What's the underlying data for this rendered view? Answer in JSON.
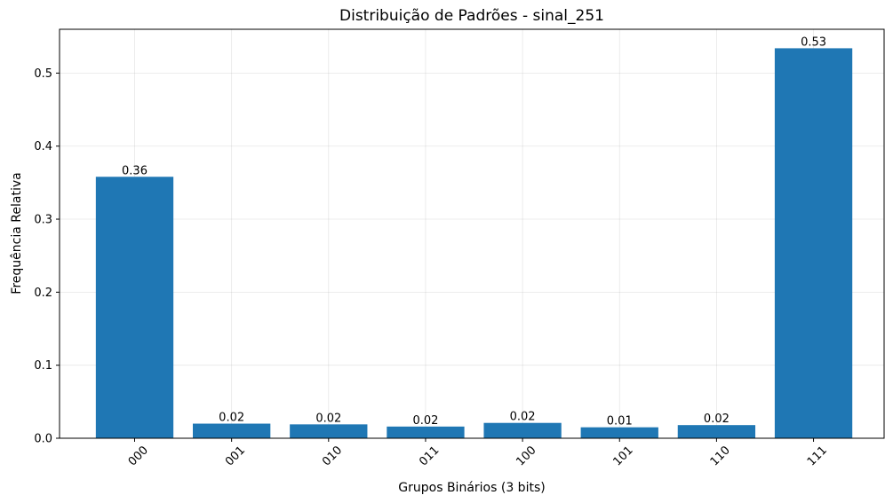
{
  "chart_data": {
    "type": "bar",
    "title": "Distribuição de Padrões - sinal_251",
    "xlabel": "Grupos Binários (3 bits)",
    "ylabel": "Frequência Relativa",
    "categories": [
      "000",
      "001",
      "010",
      "011",
      "100",
      "101",
      "110",
      "111"
    ],
    "values": [
      0.358,
      0.02,
      0.019,
      0.016,
      0.021,
      0.015,
      0.018,
      0.534
    ],
    "data_labels": [
      "0.36",
      "0.02",
      "0.02",
      "0.02",
      "0.02",
      "0.01",
      "0.02",
      "0.53"
    ],
    "ylim": [
      0,
      0.56
    ],
    "yticks": [
      0.0,
      0.1,
      0.2,
      0.3,
      0.4,
      0.5
    ],
    "ytick_labels": [
      "0.0",
      "0.1",
      "0.2",
      "0.3",
      "0.4",
      "0.5"
    ],
    "grid": true,
    "bar_color": "#1f77b4"
  }
}
